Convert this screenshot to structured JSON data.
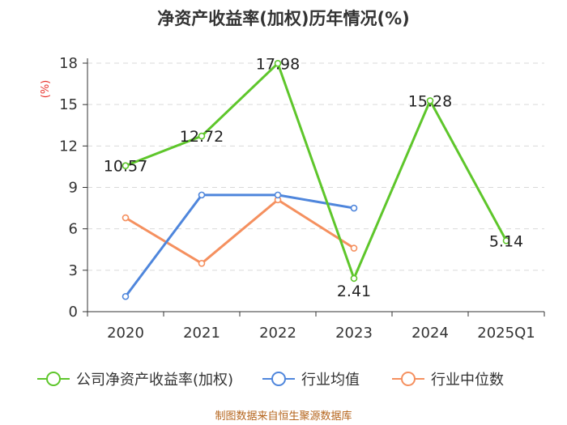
{
  "chart_data": {
    "type": "line",
    "title": "净资产收益率(加权)历年情况(%)",
    "ylabel": "(%)",
    "xlabel": "",
    "categories": [
      "2020",
      "2021",
      "2022",
      "2023",
      "2024",
      "2025Q1"
    ],
    "ylim": [
      0,
      18
    ],
    "yticks": [
      0,
      3,
      6,
      9,
      12,
      15,
      18
    ],
    "grid": true,
    "legend_position": "bottom",
    "series": [
      {
        "name": "公司净资产收益率(加权)",
        "color": "#5ec62b",
        "values": [
          10.57,
          12.72,
          17.98,
          2.41,
          15.28,
          5.14
        ],
        "labels": [
          "10.57",
          "12.72",
          "17.98",
          "2.41",
          "15.28",
          "5.14"
        ]
      },
      {
        "name": "行业均值",
        "color": "#4f86dc",
        "values": [
          1.1,
          8.45,
          8.45,
          7.5,
          null,
          null
        ]
      },
      {
        "name": "行业中位数",
        "color": "#f5905f",
        "values": [
          6.8,
          3.5,
          8.1,
          4.6,
          null,
          null
        ]
      }
    ],
    "source": "制图数据来自恒生聚源数据库"
  }
}
